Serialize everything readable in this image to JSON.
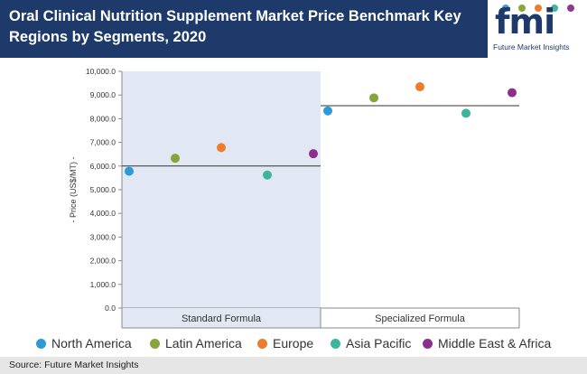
{
  "header": {
    "title": "Oral Clinical Nutrition Supplement Market Price Benchmark Key Regions by Segments, 2020"
  },
  "logo": {
    "text": "fmi",
    "tagline": "Future Market Insights",
    "dot_colors": [
      "#3e9ad6",
      "#8aa63c",
      "#ef7c2c",
      "#3fb59d",
      "#8e3a8f"
    ]
  },
  "footer": {
    "source": "Source: Future Market Insights"
  },
  "colors": {
    "header_bg": "#1d3a6b",
    "panel_bg": "#e1e8f3",
    "benchmark_line": "#333333"
  },
  "chart_data": {
    "type": "scatter",
    "categories": [
      "Standard Formula",
      "Specialized Formula"
    ],
    "ylabel": "- Price (US$/MT) -",
    "ylim": [
      0,
      10000
    ],
    "yticks": [
      0,
      1000,
      2000,
      3000,
      4000,
      5000,
      6000,
      7000,
      8000,
      9000,
      10000
    ],
    "ytick_labels": [
      "0.0",
      "1,000.0",
      "2,000.0",
      "3,000.0",
      "4,000.0",
      "5,000.0",
      "6,000.0",
      "7,000.0",
      "8,000.0",
      "9,000.0",
      "10,000.0"
    ],
    "benchmarks": [
      6000,
      8550
    ],
    "series": [
      {
        "name": "North America",
        "color": "#2d9ad7",
        "values": [
          5780,
          8330
        ]
      },
      {
        "name": "Latin America",
        "color": "#86a53b",
        "values": [
          6330,
          8880
        ]
      },
      {
        "name": "Europe",
        "color": "#ef7c2c",
        "values": [
          6780,
          9350
        ]
      },
      {
        "name": "Asia Pacific",
        "color": "#3db59a",
        "values": [
          5620,
          8230
        ]
      },
      {
        "name": "Middle East & Africa",
        "color": "#8b2f8d",
        "values": [
          6520,
          9100
        ]
      }
    ],
    "legend_position": "bottom",
    "grid": false
  }
}
